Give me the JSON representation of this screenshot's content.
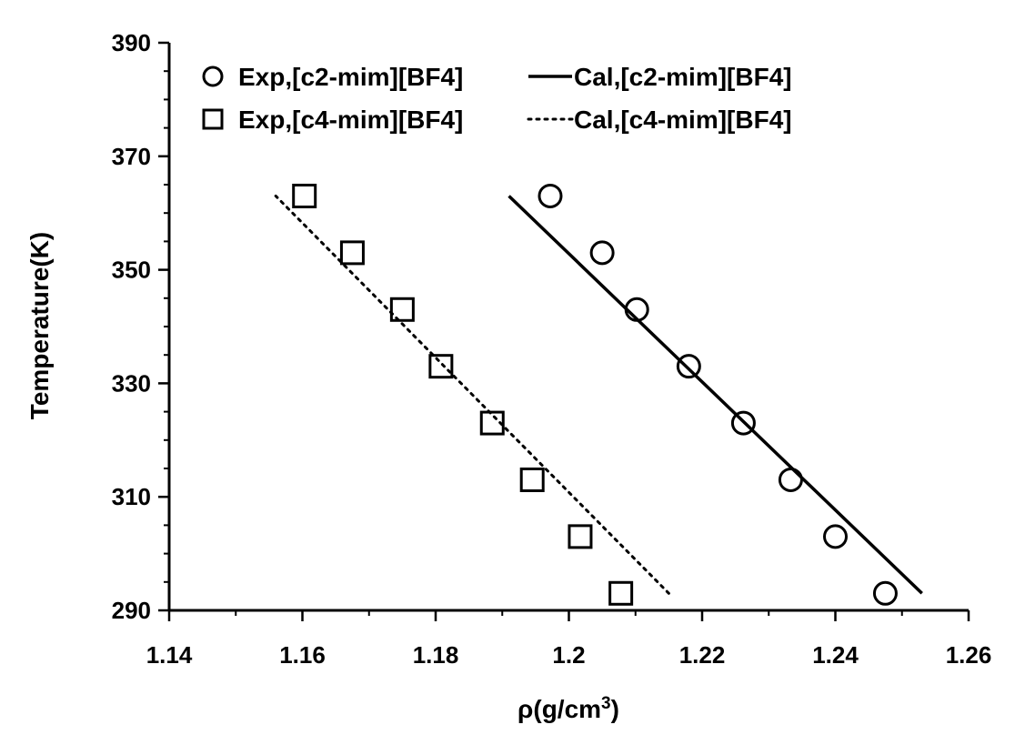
{
  "chart_data": {
    "type": "scatter",
    "title": "",
    "xlabel": "ρ(g/cm",
    "xlabel_sup": "3",
    "xlabel_close": ")",
    "ylabel": "Temperature(K)",
    "xlim": [
      1.14,
      1.26
    ],
    "ylim": [
      290,
      390
    ],
    "x_major_ticks": [
      1.14,
      1.16,
      1.18,
      1.2,
      1.22,
      1.24,
      1.26
    ],
    "x_tick_labels": [
      "1.14",
      "1.16",
      "1.18",
      "1.2",
      "1.22",
      "1.24",
      "1.26"
    ],
    "y_major_ticks": [
      290,
      310,
      330,
      350,
      370,
      390
    ],
    "y_tick_labels": [
      "290",
      "310",
      "330",
      "350",
      "370",
      "390"
    ],
    "x_minor_step": 0.01,
    "y_minor_step": 5,
    "grid": false,
    "legend_position": "top",
    "series": [
      {
        "name": "Exp,[c2-mim][BF4]",
        "kind": "markers",
        "marker": "circle",
        "color": "#000000",
        "points": [
          [
            1.2475,
            293
          ],
          [
            1.24,
            303
          ],
          [
            1.2333,
            313
          ],
          [
            1.2262,
            323
          ],
          [
            1.218,
            333
          ],
          [
            1.2102,
            343
          ],
          [
            1.205,
            353
          ],
          [
            1.1972,
            363
          ]
        ]
      },
      {
        "name": "Exp,[c4-mim][BF4]",
        "kind": "markers",
        "marker": "square",
        "color": "#000000",
        "points": [
          [
            1.2078,
            293
          ],
          [
            1.2017,
            303
          ],
          [
            1.1945,
            313
          ],
          [
            1.1885,
            323
          ],
          [
            1.1808,
            333
          ],
          [
            1.175,
            343
          ],
          [
            1.1675,
            353
          ],
          [
            1.1603,
            363
          ]
        ]
      },
      {
        "name": "Cal,[c2-mim][BF4]",
        "kind": "line",
        "dash": "solid",
        "color": "#000000",
        "points": [
          [
            1.253,
            293
          ],
          [
            1.191,
            363
          ]
        ]
      },
      {
        "name": "Cal,[c4-mim][BF4]",
        "kind": "line",
        "dash": "dotted",
        "color": "#000000",
        "points": [
          [
            1.215,
            293
          ],
          [
            1.156,
            363
          ]
        ]
      }
    ]
  }
}
